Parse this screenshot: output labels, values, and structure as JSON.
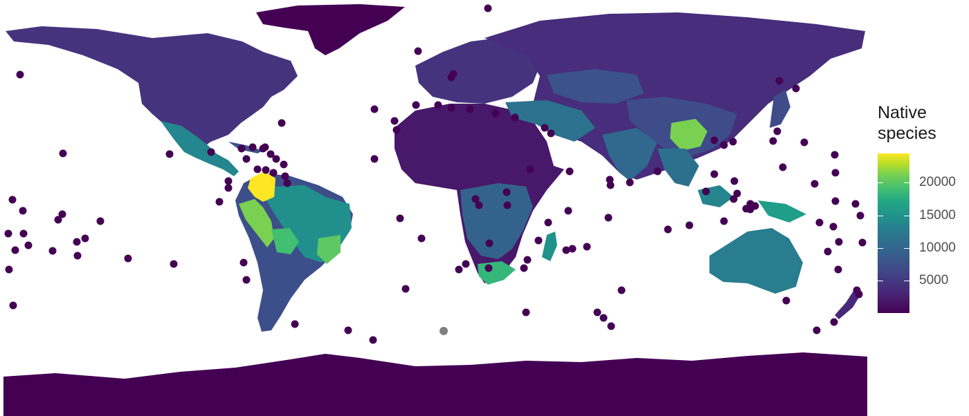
{
  "legend": {
    "title_line1": "Native",
    "title_line2": "species",
    "ticks": [
      {
        "label": "20000",
        "value": 20000
      },
      {
        "label": "15000",
        "value": 15000
      },
      {
        "label": "10000",
        "value": 10000
      },
      {
        "label": "5000",
        "value": 5000
      }
    ],
    "min": 0,
    "max": 24500
  },
  "colors": {
    "background": "#ffffff",
    "low": "#440154",
    "high": "#fde725",
    "missing": "#808080"
  }
}
